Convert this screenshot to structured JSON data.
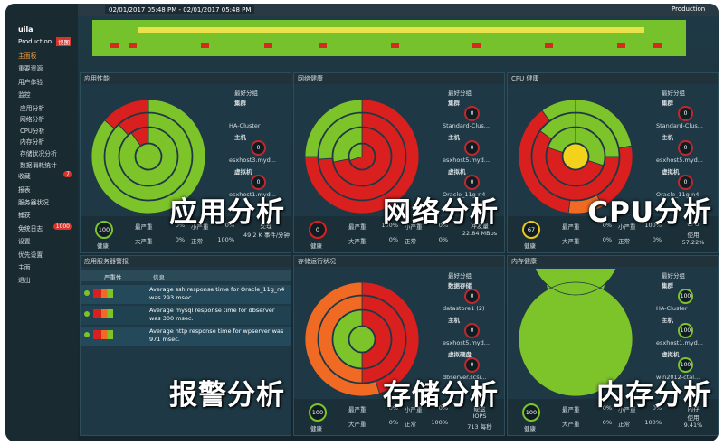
{
  "sidebar": {
    "brand": "uila",
    "env": "Production",
    "view": "视图",
    "menu": [
      {
        "label": "主面板"
      },
      {
        "label": "重要资源"
      },
      {
        "label": "用户体验"
      },
      {
        "label": "监控"
      },
      {
        "label": "应用分析",
        "sub": true
      },
      {
        "label": "网络分析",
        "sub": true
      },
      {
        "label": "CPU分析",
        "sub": true
      },
      {
        "label": "内存分析",
        "sub": true
      },
      {
        "label": "存储状况分析",
        "sub": true
      },
      {
        "label": "数据消耗统计",
        "sub": true
      },
      {
        "label": "收藏",
        "badge": "7"
      },
      {
        "label": "报表"
      },
      {
        "label": "服务器状况"
      },
      {
        "label": "捕获"
      },
      {
        "label": "免统日志",
        "badge": "1000"
      },
      {
        "label": "设置"
      },
      {
        "label": "优先设置"
      },
      {
        "label": "主面"
      },
      {
        "label": "退出"
      }
    ]
  },
  "topbar": {
    "range": "02/01/2017 05:48 PM - 02/01/2017 05:48 PM",
    "env": "Production"
  },
  "panels": [
    {
      "title": "应用性能",
      "overlay": "应用分析",
      "heading": "最好分组",
      "side": [
        {
          "role": "集群",
          "name": "HA-Cluster"
        },
        {
          "role": "主机",
          "score": "0",
          "name": "esxhost3.myd..."
        },
        {
          "role": "虚拟机",
          "score": "0",
          "name": "esxhost1.myd..."
        }
      ],
      "stats": {
        "score": "100",
        "state": "健康",
        "rows": [
          [
            "最严重",
            "0%",
            "小严重",
            "0%"
          ],
          [
            "大严重",
            "0%",
            "正常",
            "100%"
          ]
        ],
        "metric": [
          "处理",
          "49.2 K 事件/分钟"
        ]
      }
    },
    {
      "title": "网络健康",
      "overlay": "网络分析",
      "heading": "最好分组",
      "side": [
        {
          "role": "集群",
          "score": "0",
          "name": "Standard-Clus..."
        },
        {
          "role": "主机",
          "score": "0",
          "name": "esxhost5.myd..."
        },
        {
          "role": "虚拟机",
          "score": "0",
          "name": "Oracle_11g-n4"
        }
      ],
      "stats": {
        "score": "0",
        "state": "健康",
        "rows": [
          [
            "最严重",
            "100%",
            "小严重",
            "0%"
          ],
          [
            "大严重",
            "0%",
            "正常",
            "0%"
          ]
        ],
        "metric": [
          "冲发量",
          "22.84 MBps"
        ]
      }
    },
    {
      "title": "CPU 健康",
      "overlay": "CPU分析",
      "heading": "最好分组",
      "side": [
        {
          "role": "集群",
          "score": "0",
          "name": "Standard-Clus..."
        },
        {
          "role": "主机",
          "score": "0",
          "name": "esxhost5.myd..."
        },
        {
          "role": "虚拟机",
          "score": "0",
          "name": "Oracle_11g-n4"
        }
      ],
      "stats": {
        "score": "67",
        "state": "健康",
        "rows": [
          [
            "最严重",
            "0%",
            "小严重",
            "100%"
          ],
          [
            "大严重",
            "0%",
            "正常",
            "0%"
          ]
        ],
        "metric": [
          "CPU",
          "使用",
          "57.22%"
        ]
      }
    },
    {
      "title": "应用服务器警报",
      "overlay": "报警分析",
      "table": {
        "header": [
          "严重性",
          "信息"
        ],
        "rows": [
          "Average ssh response time for Oracle_11g_n4 was 293 msec.",
          "Average mysql response time for dbserver was 300 msec.",
          "Average http response time for wpserver was 971 msec."
        ]
      }
    },
    {
      "title": "存储运行状况",
      "overlay": "存储分析",
      "heading": "最好分组",
      "side": [
        {
          "role": "数据存储",
          "score": "0",
          "name": "datastore1 (2)"
        },
        {
          "role": "主机",
          "score": "0",
          "name": "esxhost5.myd..."
        },
        {
          "role": "虚拟硬盘",
          "score": "0",
          "name": "dbserver.scsi..."
        }
      ],
      "stats": {
        "score": "100",
        "state": "健康",
        "rows": [
          [
            "最严重",
            "0%",
            "小严重",
            "0%"
          ],
          [
            "大严重",
            "0%",
            "正常",
            "100%"
          ]
        ],
        "metric": [
          "硬盘",
          "IOPS",
          "713 每秒"
        ]
      }
    },
    {
      "title": "内存健康",
      "overlay": "内存分析",
      "heading": "最好分组",
      "side": [
        {
          "role": "集群",
          "score": "100",
          "name": "HA-Cluster"
        },
        {
          "role": "主机",
          "score": "100",
          "name": "esxhost1.myd..."
        },
        {
          "role": "虚拟机",
          "score": "100",
          "name": "win2012-ctal..."
        }
      ],
      "stats": {
        "score": "100",
        "state": "健康",
        "rows": [
          [
            "最严重",
            "0%",
            "小严重",
            "0%"
          ],
          [
            "大严重",
            "0%",
            "正常",
            "100%"
          ]
        ],
        "metric": [
          "内存",
          "使用",
          "9.41%"
        ]
      }
    }
  ]
}
